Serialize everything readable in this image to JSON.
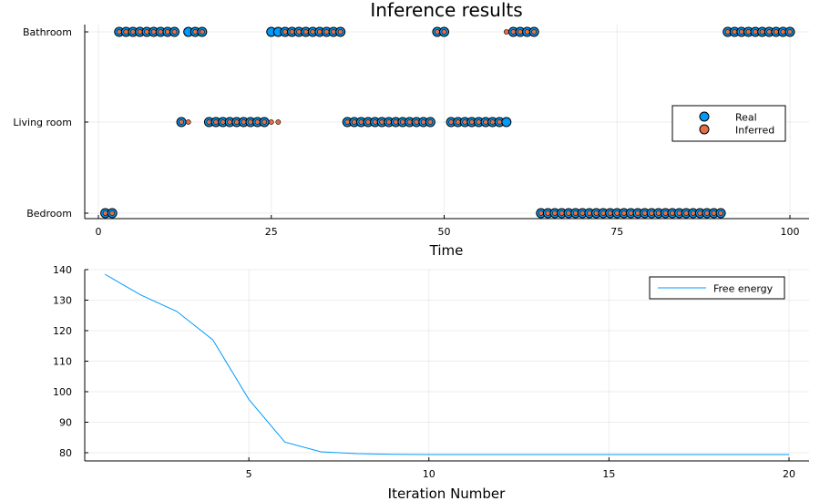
{
  "chart_data": [
    {
      "type": "scatter",
      "title": "Inference results",
      "xlabel": "Time",
      "ylabel": "",
      "xlim": [
        0,
        100
      ],
      "xticks": [
        0,
        25,
        50,
        75,
        100
      ],
      "y_categories": [
        "Bedroom",
        "Living room",
        "Bathroom"
      ],
      "legend_position": "right",
      "grid": true,
      "series": [
        {
          "name": "Real",
          "color": "#009AFA",
          "x": [
            1,
            2,
            3,
            4,
            5,
            6,
            7,
            8,
            9,
            10,
            11,
            12,
            13,
            14,
            15,
            16,
            17,
            18,
            19,
            20,
            21,
            22,
            23,
            24,
            25,
            26,
            27,
            28,
            29,
            30,
            31,
            32,
            33,
            34,
            35,
            36,
            37,
            38,
            39,
            40,
            41,
            42,
            43,
            44,
            45,
            46,
            47,
            48,
            49,
            50,
            51,
            52,
            53,
            54,
            55,
            56,
            57,
            58,
            59,
            60,
            61,
            62,
            63,
            64,
            65,
            66,
            67,
            68,
            69,
            70,
            71,
            72,
            73,
            74,
            75,
            76,
            77,
            78,
            79,
            80,
            81,
            82,
            83,
            84,
            85,
            86,
            87,
            88,
            89,
            90,
            91,
            92,
            93,
            94,
            95,
            96,
            97,
            98,
            99,
            100
          ],
          "y": [
            "Bedroom",
            "Bedroom",
            "Bathroom",
            "Bathroom",
            "Bathroom",
            "Bathroom",
            "Bathroom",
            "Bathroom",
            "Bathroom",
            "Bathroom",
            "Bathroom",
            "Living room",
            "Bathroom",
            "Bathroom",
            "Bathroom",
            "Living room",
            "Living room",
            "Living room",
            "Living room",
            "Living room",
            "Living room",
            "Living room",
            "Living room",
            "Living room",
            "Bathroom",
            "Bathroom",
            "Bathroom",
            "Bathroom",
            "Bathroom",
            "Bathroom",
            "Bathroom",
            "Bathroom",
            "Bathroom",
            "Bathroom",
            "Bathroom",
            "Living room",
            "Living room",
            "Living room",
            "Living room",
            "Living room",
            "Living room",
            "Living room",
            "Living room",
            "Living room",
            "Living room",
            "Living room",
            "Living room",
            "Living room",
            "Bathroom",
            "Bathroom",
            "Living room",
            "Living room",
            "Living room",
            "Living room",
            "Living room",
            "Living room",
            "Living room",
            "Living room",
            "Living room",
            "Bathroom",
            "Bathroom",
            "Bathroom",
            "Bathroom",
            "Bedroom",
            "Bedroom",
            "Bedroom",
            "Bedroom",
            "Bedroom",
            "Bedroom",
            "Bedroom",
            "Bedroom",
            "Bedroom",
            "Bedroom",
            "Bedroom",
            "Bedroom",
            "Bedroom",
            "Bedroom",
            "Bedroom",
            "Bedroom",
            "Bedroom",
            "Bedroom",
            "Bedroom",
            "Bedroom",
            "Bedroom",
            "Bedroom",
            "Bedroom",
            "Bedroom",
            "Bedroom",
            "Bedroom",
            "Bedroom",
            "Bathroom",
            "Bathroom",
            "Bathroom",
            "Bathroom",
            "Bathroom",
            "Bathroom",
            "Bathroom",
            "Bathroom",
            "Bathroom",
            "Bathroom"
          ]
        },
        {
          "name": "Inferred",
          "color": "#E26F46",
          "x": [
            1,
            2,
            3,
            4,
            5,
            6,
            7,
            8,
            9,
            10,
            11,
            12,
            13,
            14,
            15,
            16,
            17,
            18,
            19,
            20,
            21,
            22,
            23,
            24,
            25,
            26,
            27,
            28,
            29,
            30,
            31,
            32,
            33,
            34,
            35,
            36,
            37,
            38,
            39,
            40,
            41,
            42,
            43,
            44,
            45,
            46,
            47,
            48,
            49,
            50,
            51,
            52,
            53,
            54,
            55,
            56,
            57,
            58,
            59,
            60,
            61,
            62,
            63,
            64,
            65,
            66,
            67,
            68,
            69,
            70,
            71,
            72,
            73,
            74,
            75,
            76,
            77,
            78,
            79,
            80,
            81,
            82,
            83,
            84,
            85,
            86,
            87,
            88,
            89,
            90,
            91,
            92,
            93,
            94,
            95,
            96,
            97,
            98,
            99,
            100
          ],
          "y": [
            "Bedroom",
            "Bedroom",
            "Bathroom",
            "Bathroom",
            "Bathroom",
            "Bathroom",
            "Bathroom",
            "Bathroom",
            "Bathroom",
            "Bathroom",
            "Bathroom",
            "Living room",
            "Living room",
            "Bathroom",
            "Bathroom",
            "Living room",
            "Living room",
            "Living room",
            "Living room",
            "Living room",
            "Living room",
            "Living room",
            "Living room",
            "Living room",
            "Living room",
            "Living room",
            "Bathroom",
            "Bathroom",
            "Bathroom",
            "Bathroom",
            "Bathroom",
            "Bathroom",
            "Bathroom",
            "Bathroom",
            "Bathroom",
            "Living room",
            "Living room",
            "Living room",
            "Living room",
            "Living room",
            "Living room",
            "Living room",
            "Living room",
            "Living room",
            "Living room",
            "Living room",
            "Living room",
            "Living room",
            "Bathroom",
            "Bathroom",
            "Living room",
            "Living room",
            "Living room",
            "Living room",
            "Living room",
            "Living room",
            "Living room",
            "Living room",
            "Bathroom",
            "Bathroom",
            "Bathroom",
            "Bathroom",
            "Bathroom",
            "Bedroom",
            "Bedroom",
            "Bedroom",
            "Bedroom",
            "Bedroom",
            "Bedroom",
            "Bedroom",
            "Bedroom",
            "Bedroom",
            "Bedroom",
            "Bedroom",
            "Bedroom",
            "Bedroom",
            "Bedroom",
            "Bedroom",
            "Bedroom",
            "Bedroom",
            "Bedroom",
            "Bedroom",
            "Bedroom",
            "Bedroom",
            "Bedroom",
            "Bedroom",
            "Bedroom",
            "Bedroom",
            "Bedroom",
            "Bedroom",
            "Bathroom",
            "Bathroom",
            "Bathroom",
            "Bathroom",
            "Bathroom",
            "Bathroom",
            "Bathroom",
            "Bathroom",
            "Bathroom",
            "Bathroom"
          ]
        }
      ]
    },
    {
      "type": "line",
      "title": "",
      "xlabel": "Iteration Number",
      "ylabel": "",
      "xlim": [
        0.5,
        20.5
      ],
      "ylim": [
        77.5,
        140
      ],
      "xticks": [
        5,
        10,
        15,
        20
      ],
      "yticks": [
        80,
        90,
        100,
        110,
        120,
        130,
        140
      ],
      "legend_position": "top-right",
      "grid": true,
      "series": [
        {
          "name": "Free energy",
          "color": "#009AFA",
          "x": [
            1,
            2,
            3,
            4,
            5,
            6,
            7,
            8,
            9,
            10,
            11,
            12,
            13,
            14,
            15,
            16,
            17,
            18,
            19,
            20
          ],
          "y": [
            138.5,
            131.7,
            126.3,
            117.0,
            97.5,
            83.5,
            80.3,
            79.7,
            79.5,
            79.4,
            79.4,
            79.4,
            79.4,
            79.4,
            79.4,
            79.4,
            79.4,
            79.4,
            79.4,
            79.4
          ]
        }
      ]
    }
  ]
}
